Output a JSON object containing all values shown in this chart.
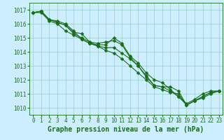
{
  "series": [
    {
      "x": [
        0,
        1,
        2,
        3,
        4,
        5,
        6,
        7,
        8,
        9,
        10,
        11,
        12,
        13,
        14,
        15,
        16,
        17,
        18,
        19,
        20,
        21,
        22,
        23
      ],
      "y": [
        1016.8,
        1016.9,
        1016.3,
        1016.2,
        1016.0,
        1015.5,
        1014.9,
        1014.6,
        1014.5,
        1014.5,
        1015.0,
        1014.6,
        1013.7,
        1013.2,
        1012.5,
        1012.0,
        1011.8,
        1011.3,
        1010.8,
        1010.3,
        1010.6,
        1011.0,
        1011.2,
        1011.2
      ]
    },
    {
      "x": [
        0,
        1,
        2,
        3,
        4,
        5,
        6,
        7,
        8,
        9,
        10,
        11,
        12,
        13,
        14,
        15,
        16,
        17,
        18,
        19,
        20,
        21,
        22,
        23
      ],
      "y": [
        1016.8,
        1016.9,
        1016.3,
        1016.1,
        1015.9,
        1015.4,
        1015.3,
        1014.7,
        1014.6,
        1014.7,
        1014.8,
        1014.5,
        1013.6,
        1013.0,
        1012.2,
        1011.6,
        1011.5,
        1011.5,
        1011.2,
        1010.2,
        1010.5,
        1010.8,
        1011.1,
        1011.2
      ]
    },
    {
      "x": [
        0,
        1,
        2,
        3,
        4,
        5,
        6,
        7,
        8,
        9,
        10,
        11,
        12,
        13,
        14,
        15,
        16,
        17,
        18,
        19,
        20,
        21,
        22,
        23
      ],
      "y": [
        1016.8,
        1016.9,
        1016.3,
        1016.1,
        1015.9,
        1015.3,
        1015.0,
        1014.7,
        1014.4,
        1014.3,
        1014.3,
        1013.9,
        1013.5,
        1013.0,
        1012.3,
        1011.6,
        1011.5,
        1011.2,
        1010.8,
        1010.2,
        1010.5,
        1010.8,
        1011.1,
        1011.2
      ]
    },
    {
      "x": [
        0,
        1,
        2,
        3,
        4,
        5,
        6,
        7,
        8,
        9,
        10,
        11,
        12,
        13,
        14,
        15,
        16,
        17,
        18,
        19,
        20,
        21,
        22,
        23
      ],
      "y": [
        1016.8,
        1016.8,
        1016.2,
        1016.0,
        1015.5,
        1015.2,
        1014.9,
        1014.6,
        1014.4,
        1014.1,
        1013.9,
        1013.5,
        1013.0,
        1012.5,
        1012.0,
        1011.5,
        1011.3,
        1011.1,
        1011.0,
        1010.2,
        1010.5,
        1010.7,
        1011.0,
        1011.2
      ]
    }
  ],
  "line_color": "#1a6e1a",
  "marker": "D",
  "marker_size": 2.5,
  "background_color": "#cceeff",
  "grid_color": "#99cccc",
  "xlabel": "Graphe pression niveau de la mer (hPa)",
  "xlabel_color": "#1a6e1a",
  "xlabel_fontsize": 7,
  "tick_color": "#1a6e1a",
  "tick_fontsize": 5.5,
  "ylim": [
    1009.5,
    1017.5
  ],
  "yticks": [
    1010,
    1011,
    1012,
    1013,
    1014,
    1015,
    1016,
    1017
  ],
  "xlim": [
    -0.5,
    23.5
  ],
  "xticks": [
    0,
    1,
    2,
    3,
    4,
    5,
    6,
    7,
    8,
    9,
    10,
    11,
    12,
    13,
    14,
    15,
    16,
    17,
    18,
    19,
    20,
    21,
    22,
    23
  ]
}
